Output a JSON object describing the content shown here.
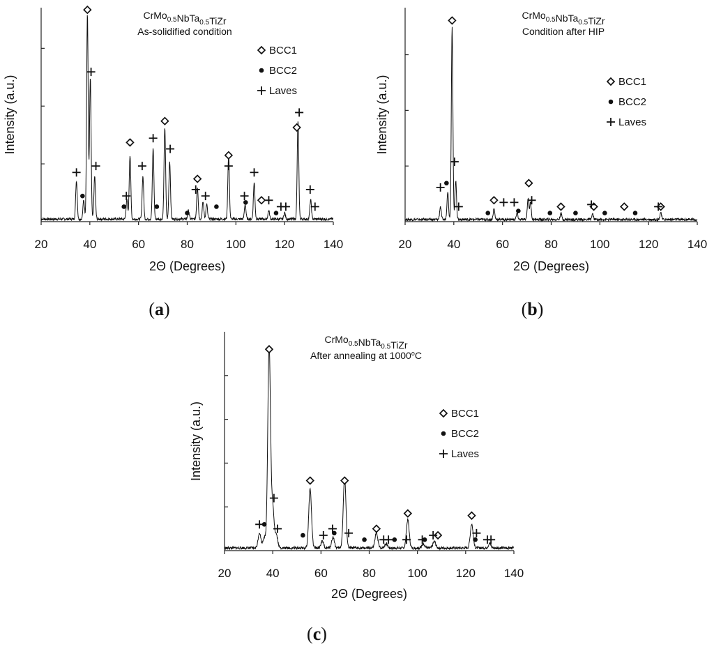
{
  "chart_data": [
    {
      "type": "line",
      "panel": "(a)",
      "panel_letter": "a",
      "title": "CrMo0.5NbTa0.5TiZr",
      "subtitle": "As-solidified condition",
      "xlabel": "2Θ (Degrees)",
      "ylabel": "Intensity (a.u.)",
      "xlim": [
        20,
        140
      ],
      "xticks": [
        20,
        40,
        60,
        80,
        100,
        120,
        140
      ],
      "ylim": [
        0,
        1
      ],
      "ygrid_ticks": [
        0.27,
        0.54,
        0.81
      ],
      "grid": false,
      "legend": [
        "BCC1",
        "BCC2",
        "Laves"
      ],
      "legend_position": "top-right",
      "baseline": 0.012,
      "peaks": [
        {
          "x": 34.5,
          "h": 0.18
        },
        {
          "x": 37.5,
          "h": 0.09
        },
        {
          "x": 39.0,
          "h": 0.96
        },
        {
          "x": 40.2,
          "h": 0.66
        },
        {
          "x": 42.0,
          "h": 0.2
        },
        {
          "x": 55.2,
          "h": 0.09
        },
        {
          "x": 56.5,
          "h": 0.3
        },
        {
          "x": 61.8,
          "h": 0.2
        },
        {
          "x": 66.0,
          "h": 0.33
        },
        {
          "x": 70.8,
          "h": 0.43
        },
        {
          "x": 72.8,
          "h": 0.27
        },
        {
          "x": 80.5,
          "h": 0.04
        },
        {
          "x": 84.2,
          "h": 0.15
        },
        {
          "x": 86.5,
          "h": 0.08
        },
        {
          "x": 88.0,
          "h": 0.07
        },
        {
          "x": 97.0,
          "h": 0.3
        },
        {
          "x": 103.8,
          "h": 0.07
        },
        {
          "x": 107.5,
          "h": 0.17
        },
        {
          "x": 113.5,
          "h": 0.04
        },
        {
          "x": 120.0,
          "h": 0.03
        },
        {
          "x": 125.5,
          "h": 0.46
        },
        {
          "x": 130.7,
          "h": 0.09
        }
      ],
      "markers": [
        {
          "kind": "BCC1",
          "x": 39.0,
          "y": 0.99
        },
        {
          "kind": "BCC1",
          "x": 56.5,
          "y": 0.37
        },
        {
          "kind": "BCC1",
          "x": 70.8,
          "y": 0.47
        },
        {
          "kind": "BCC1",
          "x": 84.2,
          "y": 0.2
        },
        {
          "kind": "BCC1",
          "x": 97.0,
          "y": 0.31
        },
        {
          "kind": "BCC1",
          "x": 110.5,
          "y": 0.1
        },
        {
          "kind": "BCC1",
          "x": 125.0,
          "y": 0.44
        },
        {
          "kind": "BCC2",
          "x": 37.0,
          "y": 0.12
        },
        {
          "kind": "BCC2",
          "x": 54.0,
          "y": 0.07
        },
        {
          "kind": "BCC2",
          "x": 67.5,
          "y": 0.07
        },
        {
          "kind": "BCC2",
          "x": 80.0,
          "y": 0.04
        },
        {
          "kind": "BCC2",
          "x": 92.0,
          "y": 0.07
        },
        {
          "kind": "BCC2",
          "x": 104.0,
          "y": 0.09
        },
        {
          "kind": "BCC2",
          "x": 116.5,
          "y": 0.04
        },
        {
          "kind": "Laves",
          "x": 34.5,
          "y": 0.23
        },
        {
          "kind": "Laves",
          "x": 40.5,
          "y": 0.7
        },
        {
          "kind": "Laves",
          "x": 42.5,
          "y": 0.26
        },
        {
          "kind": "Laves",
          "x": 55.0,
          "y": 0.12
        },
        {
          "kind": "Laves",
          "x": 61.5,
          "y": 0.26
        },
        {
          "kind": "Laves",
          "x": 66.0,
          "y": 0.39
        },
        {
          "kind": "Laves",
          "x": 73.0,
          "y": 0.34
        },
        {
          "kind": "Laves",
          "x": 83.5,
          "y": 0.15
        },
        {
          "kind": "Laves",
          "x": 87.5,
          "y": 0.12
        },
        {
          "kind": "Laves",
          "x": 97.0,
          "y": 0.26
        },
        {
          "kind": "Laves",
          "x": 103.5,
          "y": 0.12
        },
        {
          "kind": "Laves",
          "x": 107.5,
          "y": 0.23
        },
        {
          "kind": "Laves",
          "x": 113.5,
          "y": 0.1
        },
        {
          "kind": "Laves",
          "x": 118.5,
          "y": 0.07
        },
        {
          "kind": "Laves",
          "x": 120.5,
          "y": 0.07
        },
        {
          "kind": "Laves",
          "x": 126.0,
          "y": 0.51
        },
        {
          "kind": "Laves",
          "x": 130.5,
          "y": 0.15
        },
        {
          "kind": "Laves",
          "x": 132.5,
          "y": 0.07
        }
      ]
    },
    {
      "type": "line",
      "panel": "(b)",
      "panel_letter": "b",
      "title": "CrMo0.5NbTa0.5TiZr",
      "subtitle": "Condition after HIP",
      "xlabel": "2Θ (Degrees)",
      "ylabel": "Intensity (a.u.)",
      "xlim": [
        20,
        140
      ],
      "xticks": [
        20,
        40,
        60,
        80,
        100,
        120,
        140
      ],
      "ylim": [
        0,
        1
      ],
      "ygrid_ticks": [
        0.26,
        0.52,
        0.78
      ],
      "grid": false,
      "legend": [
        "BCC1",
        "BCC2",
        "Laves"
      ],
      "legend_position": "top-right",
      "baseline": 0.01,
      "peaks": [
        {
          "x": 34.5,
          "h": 0.06
        },
        {
          "x": 37.5,
          "h": 0.13
        },
        {
          "x": 39.3,
          "h": 0.9
        },
        {
          "x": 40.8,
          "h": 0.18
        },
        {
          "x": 56.5,
          "h": 0.05
        },
        {
          "x": 66.0,
          "h": 0.03
        },
        {
          "x": 70.5,
          "h": 0.1
        },
        {
          "x": 71.5,
          "h": 0.08
        },
        {
          "x": 84.0,
          "h": 0.03
        },
        {
          "x": 97.0,
          "h": 0.025
        },
        {
          "x": 125.0,
          "h": 0.035
        }
      ],
      "markers": [
        {
          "kind": "BCC1",
          "x": 39.3,
          "y": 0.94
        },
        {
          "kind": "BCC1",
          "x": 56.5,
          "y": 0.1
        },
        {
          "kind": "BCC1",
          "x": 70.8,
          "y": 0.18
        },
        {
          "kind": "BCC1",
          "x": 84.0,
          "y": 0.07
        },
        {
          "kind": "BCC1",
          "x": 97.5,
          "y": 0.07
        },
        {
          "kind": "BCC1",
          "x": 110.0,
          "y": 0.07
        },
        {
          "kind": "BCC1",
          "x": 125.0,
          "y": 0.07
        },
        {
          "kind": "BCC2",
          "x": 37.0,
          "y": 0.18
        },
        {
          "kind": "BCC2",
          "x": 54.0,
          "y": 0.04
        },
        {
          "kind": "BCC2",
          "x": 66.5,
          "y": 0.05
        },
        {
          "kind": "BCC2",
          "x": 79.5,
          "y": 0.04
        },
        {
          "kind": "BCC2",
          "x": 90.0,
          "y": 0.04
        },
        {
          "kind": "BCC2",
          "x": 102.0,
          "y": 0.04
        },
        {
          "kind": "BCC2",
          "x": 114.5,
          "y": 0.04
        },
        {
          "kind": "Laves",
          "x": 34.5,
          "y": 0.16
        },
        {
          "kind": "Laves",
          "x": 40.3,
          "y": 0.28
        },
        {
          "kind": "Laves",
          "x": 42.0,
          "y": 0.07
        },
        {
          "kind": "Laves",
          "x": 60.5,
          "y": 0.09
        },
        {
          "kind": "Laves",
          "x": 64.8,
          "y": 0.09
        },
        {
          "kind": "Laves",
          "x": 72.0,
          "y": 0.1
        },
        {
          "kind": "Laves",
          "x": 96.5,
          "y": 0.08
        },
        {
          "kind": "Laves",
          "x": 124.0,
          "y": 0.07
        }
      ]
    },
    {
      "type": "line",
      "panel": "(c)",
      "panel_letter": "c",
      "title": "CrMo0.5NbTa0.5TiZr",
      "subtitle": "After annealing at 1000oC",
      "xlabel": "2Θ (Degrees)",
      "ylabel": "Intensity (a.u.)",
      "xlim": [
        20,
        140
      ],
      "xticks": [
        20,
        40,
        60,
        80,
        100,
        120,
        140
      ],
      "ylim": [
        0,
        1
      ],
      "ygrid_ticks": [
        0.2,
        0.4,
        0.6,
        0.8
      ],
      "grid": false,
      "legend": [
        "BCC1",
        "BCC2",
        "Laves"
      ],
      "legend_position": "top-right",
      "baseline": 0.012,
      "peaks": [
        {
          "x": 34.5,
          "h": 0.07
        },
        {
          "x": 36.5,
          "h": 0.05
        },
        {
          "x": 38.5,
          "h": 0.92
        },
        {
          "x": 40.0,
          "h": 0.18
        },
        {
          "x": 41.5,
          "h": 0.06
        },
        {
          "x": 55.5,
          "h": 0.27
        },
        {
          "x": 60.5,
          "h": 0.03
        },
        {
          "x": 65.0,
          "h": 0.05
        },
        {
          "x": 69.8,
          "h": 0.32
        },
        {
          "x": 83.0,
          "h": 0.07
        },
        {
          "x": 87.0,
          "h": 0.02
        },
        {
          "x": 96.0,
          "h": 0.13
        },
        {
          "x": 102.5,
          "h": 0.02
        },
        {
          "x": 107.0,
          "h": 0.03
        },
        {
          "x": 122.5,
          "h": 0.11
        },
        {
          "x": 130.0,
          "h": 0.02
        }
      ],
      "markers": [
        {
          "kind": "BCC1",
          "x": 38.5,
          "y": 0.92
        },
        {
          "kind": "BCC1",
          "x": 55.5,
          "y": 0.32
        },
        {
          "kind": "BCC1",
          "x": 69.8,
          "y": 0.32
        },
        {
          "kind": "BCC1",
          "x": 83.0,
          "y": 0.1
        },
        {
          "kind": "BCC1",
          "x": 96.0,
          "y": 0.17
        },
        {
          "kind": "BCC1",
          "x": 108.5,
          "y": 0.07
        },
        {
          "kind": "BCC1",
          "x": 122.5,
          "y": 0.16
        },
        {
          "kind": "BCC2",
          "x": 36.5,
          "y": 0.12
        },
        {
          "kind": "BCC2",
          "x": 52.5,
          "y": 0.07
        },
        {
          "kind": "BCC2",
          "x": 65.5,
          "y": 0.08
        },
        {
          "kind": "BCC2",
          "x": 78.0,
          "y": 0.05
        },
        {
          "kind": "BCC2",
          "x": 90.5,
          "y": 0.05
        },
        {
          "kind": "BCC2",
          "x": 103.0,
          "y": 0.05
        },
        {
          "kind": "BCC2",
          "x": 124.0,
          "y": 0.05
        },
        {
          "kind": "Laves",
          "x": 34.5,
          "y": 0.12
        },
        {
          "kind": "Laves",
          "x": 40.5,
          "y": 0.24
        },
        {
          "kind": "Laves",
          "x": 42.0,
          "y": 0.1
        },
        {
          "kind": "Laves",
          "x": 61.0,
          "y": 0.07
        },
        {
          "kind": "Laves",
          "x": 64.8,
          "y": 0.1
        },
        {
          "kind": "Laves",
          "x": 71.5,
          "y": 0.08
        },
        {
          "kind": "Laves",
          "x": 86.0,
          "y": 0.05
        },
        {
          "kind": "Laves",
          "x": 88.0,
          "y": 0.05
        },
        {
          "kind": "Laves",
          "x": 95.5,
          "y": 0.05
        },
        {
          "kind": "Laves",
          "x": 102.0,
          "y": 0.05
        },
        {
          "kind": "Laves",
          "x": 106.5,
          "y": 0.07
        },
        {
          "kind": "Laves",
          "x": 124.5,
          "y": 0.08
        },
        {
          "kind": "Laves",
          "x": 129.0,
          "y": 0.05
        },
        {
          "kind": "Laves",
          "x": 130.5,
          "y": 0.05
        }
      ]
    }
  ]
}
